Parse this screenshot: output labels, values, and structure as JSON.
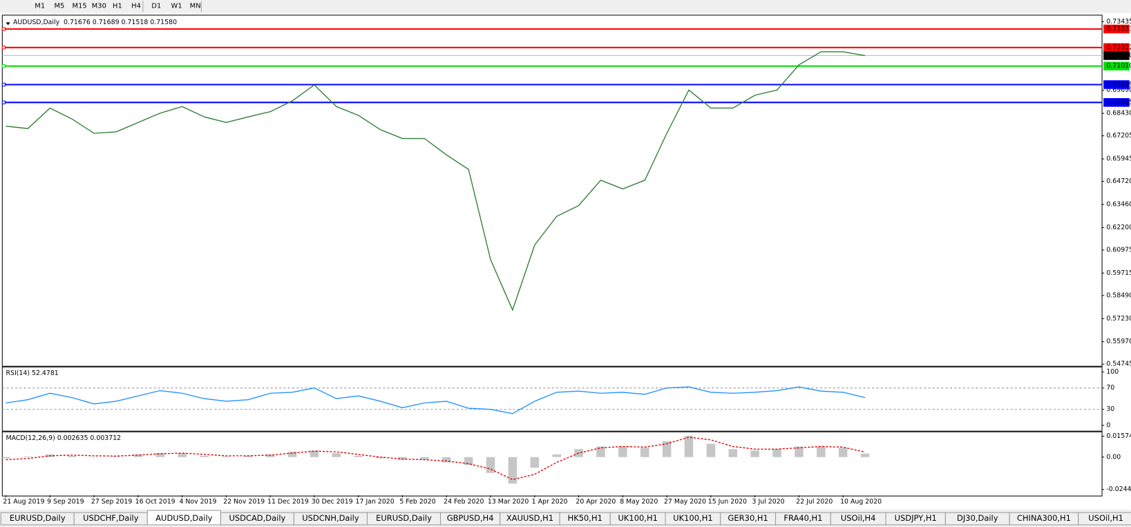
{
  "toolbar": [
    "M1",
    "M5",
    "M15",
    "M30",
    "H1",
    "H4",
    "D1",
    "W1",
    "MN"
  ],
  "symbol": "AUDUSD,Daily",
  "quote": "0.71676 0.71689 0.71518 0.71580",
  "tabs": [
    "EURUSD,Daily",
    "USDCHF,Daily",
    "AUDUSD,Daily",
    "USDCAD,Daily",
    "USDCNH,Daily",
    "EURUSD,Daily",
    "GBPUSD,H4",
    "XAUUSD,H1",
    "HK50,H1",
    "UK100,H1",
    "UK100,H1",
    "GER30,H1",
    "FRA40,H1",
    "USOil,H4",
    "USDJPY,H1",
    "DJ30,Daily",
    "CHINA300,H1",
    "USOil,H1"
  ],
  "chart_data": [
    {
      "type": "line",
      "categories": [
        "21 Aug 2019",
        null,
        "9 Sep 2019",
        null,
        "27 Sep 2019",
        null,
        "16 Oct 2019",
        null,
        "4 Nov 2019",
        null,
        "22 Nov 2019",
        null,
        "11 Dec 2019",
        null,
        "30 Dec 2019",
        null,
        "17 Jan 2020",
        null,
        "5 Feb 2020",
        null,
        "24 Feb 2020",
        null,
        "13 Mar 2020",
        null,
        "1 Apr 2020",
        null,
        "20 Apr 2020",
        null,
        "8 May 2020",
        null,
        "27 May 2020",
        null,
        "15 Jun 2020",
        null,
        "3 Jul 2020",
        null,
        "22 Jul 2020",
        null,
        "10 Aug 2020",
        null
      ],
      "series": [
        {
          "color": "#2e7d32",
          "values": [
            0.6773,
            0.676,
            0.6872,
            0.6812,
            0.6734,
            0.6742,
            0.6793,
            0.6844,
            0.688,
            0.6824,
            0.6793,
            0.6824,
            0.6852,
            0.6911,
            0.6998,
            0.688,
            0.6832,
            0.6754,
            0.6706,
            0.6706,
            0.6616,
            0.6537,
            0.6045,
            0.577,
            0.6124,
            0.6281,
            0.634,
            0.6478,
            0.6431,
            0.6478,
            0.6734,
            0.697,
            0.6872,
            0.6872,
            0.6942,
            0.697,
            0.7108,
            0.7179,
            0.7179,
            0.7158
          ]
        }
      ],
      "ylim": [
        0.5467,
        0.7375
      ],
      "yticks": [
        0.73435,
        {
          "value": 0.6969,
          "label": "0.69690"
        },
        {
          "value": 0.6843,
          "label": "0.68430"
        },
        0.67205,
        0.65945,
        {
          "value": 0.6472,
          "label": "0.64720"
        },
        {
          "value": 0.6346,
          "label": "0.63460"
        },
        {
          "value": 0.622,
          "label": "0.62200"
        },
        0.60975,
        0.59715,
        {
          "value": 0.5849,
          "label": "0.58490"
        },
        {
          "value": 0.5723,
          "label": "0.57230"
        },
        {
          "value": 0.5597,
          "label": "0.55970"
        },
        0.54745
      ],
      "levels": [
        {
          "value": 0.73033,
          "color": "#ff0000"
        },
        {
          "value": 0.72022,
          "color": "#ff0000"
        },
        {
          "value": 0.7101,
          "label": "0.71010",
          "color": "#00e000"
        },
        {
          "value": 0.69999,
          "color": "#0000ff"
        },
        {
          "value": 0.69025,
          "color": "#0000ff"
        }
      ],
      "current": {
        "value": 0.7158,
        "label": "0.71580"
      }
    },
    {
      "type": "line",
      "title": "RSI(14) 52.4781",
      "series": [
        {
          "color": "#1e90ff",
          "values": [
            42,
            48,
            60,
            52,
            40,
            45,
            55,
            65,
            60,
            50,
            45,
            48,
            60,
            62,
            70,
            50,
            55,
            45,
            33,
            42,
            45,
            32,
            30,
            22,
            45,
            62,
            64,
            60,
            62,
            58,
            70,
            72,
            62,
            60,
            62,
            65,
            72,
            64,
            62,
            52
          ]
        }
      ],
      "ylim": [
        -9.5,
        108
      ],
      "yticks": [
        100,
        70,
        30,
        0
      ],
      "levels": [
        70,
        30
      ]
    },
    {
      "type": "macd",
      "title": "MACD(12,26,9) 0.002635 0.003712",
      "series": [
        {
          "color": "#a0a0a0",
          "values": [
            -0.001,
            0.0005,
            0.002,
            0.001,
            0,
            0.0005,
            0.002,
            0.003,
            0.003,
            0.001,
            0.0005,
            0.001,
            0.002,
            0.004,
            0.005,
            0.003,
            0.001,
            -0.001,
            -0.002,
            -0.002,
            -0.004,
            -0.006,
            -0.012,
            -0.02,
            -0.008,
            0.002,
            0.006,
            0.008,
            0.008,
            0.007,
            0.012,
            0.016,
            0.01,
            0.006,
            0.005,
            0.006,
            0.008,
            0.008,
            0.007,
            0.002635
          ]
        },
        {
          "color": "#e00000",
          "values": [
            -0.002,
            -0.001,
            0.001,
            0.0015,
            0.001,
            0.0008,
            0.0015,
            0.0025,
            0.003,
            0.002,
            0.001,
            0.001,
            0.0015,
            0.003,
            0.0045,
            0.004,
            0.002,
            0,
            -0.0015,
            -0.002,
            -0.003,
            -0.005,
            -0.009,
            -0.017,
            -0.013,
            -0.004,
            0.003,
            0.007,
            0.008,
            0.0075,
            0.01,
            0.015,
            0.013,
            0.008,
            0.006,
            0.006,
            0.007,
            0.008,
            0.0075,
            0.003712
          ]
        }
      ],
      "ylim": [
        -0.0288,
        0.0185
      ],
      "yticks": [
        0.015741,
        {
          "value": 0,
          "label": "0.00"
        },
        -0.02441
      ]
    }
  ]
}
